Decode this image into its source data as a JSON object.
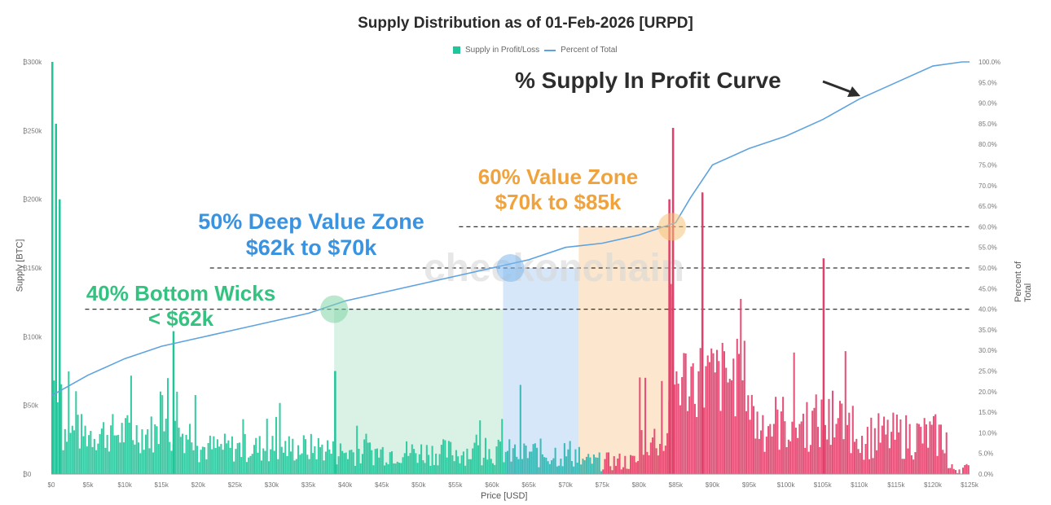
{
  "chart_data": {
    "type": "bar",
    "title": "Supply Distribution as of 01-Feb-2026 [URPD]",
    "xlabel": "Price [USD]",
    "ylabel": "Supply [BTC]",
    "ylabel_right": "Percent of Total",
    "legend": [
      "Supply in Profit/Loss",
      "Percent of Total"
    ],
    "x_tick_labels": [
      "$0",
      "$5k",
      "$10k",
      "$15k",
      "$20k",
      "$25k",
      "$30k",
      "$35k",
      "$40k",
      "$45k",
      "$50k",
      "$55k",
      "$60k",
      "$65k",
      "$70k",
      "$75k",
      "$80k",
      "$85k",
      "$90k",
      "$95k",
      "$100k",
      "$105k",
      "$110k",
      "$115k",
      "$120k",
      "$125k"
    ],
    "y_tick_labels": [
      "₿0",
      "₿50k",
      "₿100k",
      "₿150k",
      "₿200k",
      "₿250k",
      "₿300k"
    ],
    "y2_tick_labels": [
      "0.0%",
      "5.0%",
      "10.0%",
      "15.0%",
      "20.0%",
      "25.0%",
      "30.0%",
      "35.0%",
      "40.0%",
      "45.0%",
      "50.0%",
      "55.0%",
      "60.0%",
      "65.0%",
      "70.0%",
      "75.0%",
      "80.0%",
      "85.0%",
      "90.0%",
      "95.0%",
      "100.0%"
    ],
    "xlim": [
      0,
      125000
    ],
    "ylim": [
      0,
      300000
    ],
    "y2lim": [
      0,
      100
    ],
    "bar_peaks": [
      {
        "x": 0,
        "y": 300000
      },
      {
        "x": 500,
        "y": 255000
      },
      {
        "x": 1000,
        "y": 200000
      },
      {
        "x": 16500,
        "y": 104000
      },
      {
        "x": 38500,
        "y": 75000
      },
      {
        "x": 84000,
        "y": 200000
      },
      {
        "x": 84500,
        "y": 252000
      },
      {
        "x": 88500,
        "y": 205000
      },
      {
        "x": 105000,
        "y": 157000
      }
    ],
    "percent_curve": [
      {
        "x": 0,
        "y": 19
      },
      {
        "x": 5000,
        "y": 24
      },
      {
        "x": 10000,
        "y": 28
      },
      {
        "x": 15000,
        "y": 31
      },
      {
        "x": 20000,
        "y": 33
      },
      {
        "x": 25000,
        "y": 35
      },
      {
        "x": 30000,
        "y": 37
      },
      {
        "x": 35000,
        "y": 39
      },
      {
        "x": 40000,
        "y": 42
      },
      {
        "x": 45000,
        "y": 44
      },
      {
        "x": 50000,
        "y": 46
      },
      {
        "x": 55000,
        "y": 48
      },
      {
        "x": 60000,
        "y": 50
      },
      {
        "x": 65000,
        "y": 52
      },
      {
        "x": 70000,
        "y": 55
      },
      {
        "x": 75000,
        "y": 56
      },
      {
        "x": 80000,
        "y": 58
      },
      {
        "x": 85000,
        "y": 61
      },
      {
        "x": 87000,
        "y": 67
      },
      {
        "x": 90000,
        "y": 75
      },
      {
        "x": 95000,
        "y": 79
      },
      {
        "x": 100000,
        "y": 82
      },
      {
        "x": 105000,
        "y": 86
      },
      {
        "x": 110000,
        "y": 91
      },
      {
        "x": 115000,
        "y": 95
      },
      {
        "x": 120000,
        "y": 99
      },
      {
        "x": 124000,
        "y": 100
      },
      {
        "x": 125000,
        "y": 100
      }
    ],
    "zones": [
      {
        "from": 38500,
        "to": 61500,
        "color": "#d3f0e0",
        "level": 40
      },
      {
        "from": 61500,
        "to": 71800,
        "color": "#cfe3f8",
        "level": 50
      },
      {
        "from": 71800,
        "to": 84500,
        "color": "#fbe2c4",
        "level": 60
      }
    ],
    "bar_colors": {
      "green": "#22c59a",
      "teal": "#2eb6b0",
      "red": "#e23f6a"
    }
  },
  "annotations": {
    "curve": "% Supply In Profit Curve",
    "zone60_line1": "60% Value Zone",
    "zone60_line2": "$70k to $85k",
    "zone50_line1": "50% Deep Value Zone",
    "zone50_line2": "$62k to $70k",
    "zone40_line1": "40% Bottom Wicks",
    "zone40_line2": "< $62k"
  },
  "watermark": "checkonchain"
}
